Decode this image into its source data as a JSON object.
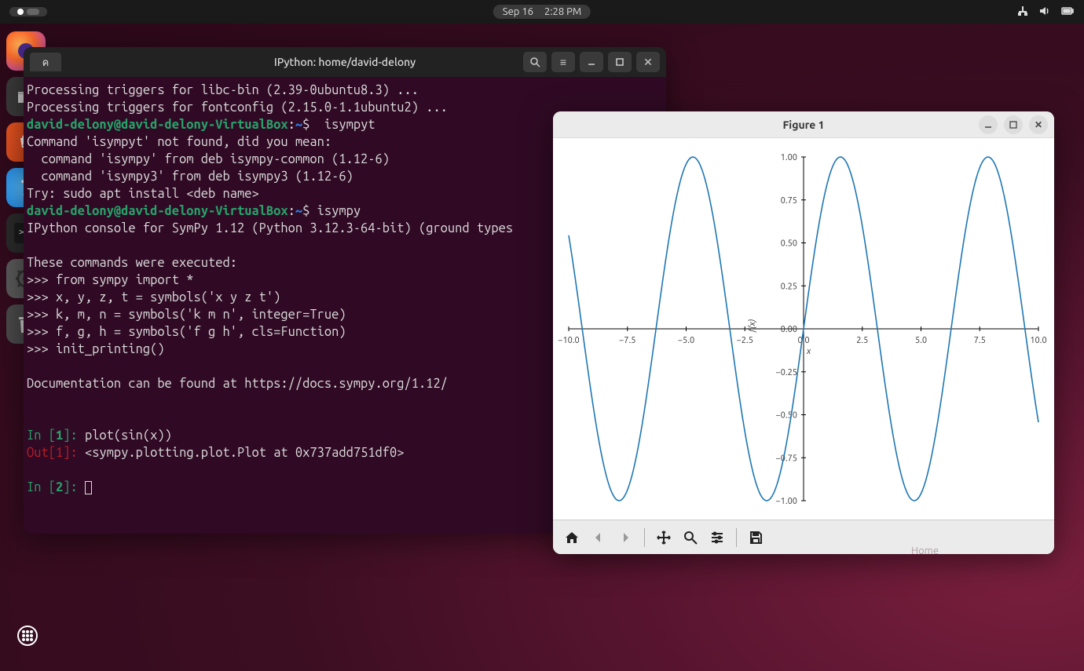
{
  "topbar": {
    "date": "Sep 16",
    "time": "2:28 PM"
  },
  "dock": {
    "items": [
      "firefox",
      "files",
      "software",
      "help",
      "terminal",
      "settings",
      "trash"
    ]
  },
  "terminal": {
    "title": "IPython: home/david-delony",
    "tab_label": "ค",
    "lines": {
      "l1": "Processing triggers for libc-bin (2.39-0ubuntu8.3) ...",
      "l2": "Processing triggers for fontconfig (2.15.0-1.1ubuntu2) ...",
      "prompt_user": "david-delony@david-delony-VirtualBox",
      "prompt_sep": ":",
      "prompt_path": "~",
      "prompt_dollar": "$",
      "cmd1": "  isympyt",
      "l4": "Command 'isympyt' not found, did you mean:",
      "l5": "  command 'isympy' from deb isympy-common (1.12-6)",
      "l6": "  command 'isympy3' from deb isympy3 (1.12-6)",
      "l7": "Try: sudo apt install <deb name>",
      "cmd2": " isympy",
      "l9": "IPython console for SymPy 1.12 (Python 3.12.3-64-bit) (ground types",
      "l10": "",
      "l11": "These commands were executed:",
      "l12": ">>> from sympy import *",
      "l13": ">>> x, y, z, t = symbols('x y z t')",
      "l14": ">>> k, m, n = symbols('k m n', integer=True)",
      "l15": ">>> f, g, h = symbols('f g h', cls=Function)",
      "l16": ">>> init_printing()",
      "l17": "",
      "l18": "Documentation can be found at https://docs.sympy.org/1.12/",
      "in1_label": "In [",
      "in1_num": "1",
      "in1_close": "]: ",
      "in1_cmd": "plot(sin(x))",
      "out1_label": "Out[",
      "out1_num": "1",
      "out1_close": "]: ",
      "out1_val": "<sympy.plotting.plot.Plot at 0x737add751df0>",
      "in2_num": "2"
    }
  },
  "figure": {
    "title": "Figure 1",
    "plot": {
      "type": "line",
      "function": "sin(x)",
      "xlim": [
        -10,
        10
      ],
      "ylim": [
        -1,
        1
      ],
      "xtick_labels": [
        "−10.0",
        "−7.5",
        "−5.0",
        "−2.5",
        "0.0",
        "2.5",
        "5.0",
        "7.5",
        "10.0"
      ],
      "xtick_values": [
        -10,
        -7.5,
        -5,
        -2.5,
        0,
        2.5,
        5,
        7.5,
        10
      ],
      "ytick_labels": [
        "1.00",
        "0.75",
        "0.50",
        "0.25",
        "0.00",
        "−0.25",
        "−0.50",
        "−0.75",
        "−1.00"
      ],
      "ytick_values": [
        1,
        0.75,
        0.5,
        0.25,
        0,
        -0.25,
        -0.5,
        -0.75,
        -1
      ],
      "xlabel": "x",
      "ylabel": "f(x)",
      "line_color": "#1f77b4",
      "line_width": 1.6,
      "axis_color": "#000000",
      "tick_fontsize": 11,
      "background": "#ffffff"
    },
    "toolbar_icons": [
      "home",
      "back",
      "forward",
      "pan",
      "zoom",
      "configure",
      "save"
    ]
  },
  "desktop": {
    "home_label": "Home"
  }
}
